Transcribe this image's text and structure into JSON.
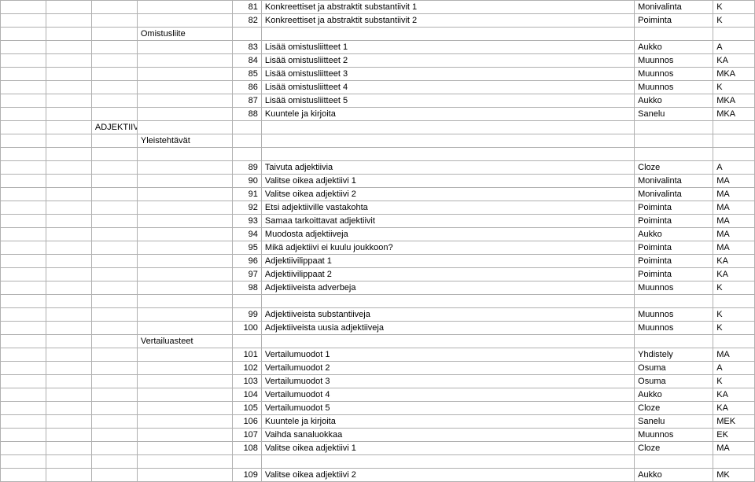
{
  "rows": [
    {
      "e": "81",
      "f": "Konkreettiset ja abstraktit substantiivit 1",
      "g": "Monivalinta",
      "h": "K"
    },
    {
      "e": "82",
      "f": "Konkreettiset ja abstraktit substantiivit 2",
      "g": "Poiminta",
      "h": "K"
    },
    {
      "d": "Omistusliite"
    },
    {
      "e": "83",
      "f": "Lisää omistusliitteet 1",
      "g": "Aukko",
      "h": "A"
    },
    {
      "e": "84",
      "f": "Lisää omistusliitteet 2",
      "g": "Muunnos",
      "h": "KA"
    },
    {
      "e": "85",
      "f": "Lisää omistusliitteet 3",
      "g": "Muunnos",
      "h": "MKA"
    },
    {
      "e": "86",
      "f": "Lisää omistusliitteet 4",
      "g": "Muunnos",
      "h": "K"
    },
    {
      "e": "87",
      "f": "Lisää omistusliitteet 5",
      "g": "Aukko",
      "h": "MKA"
    },
    {
      "e": "88",
      "f": "Kuuntele ja kirjoita",
      "g": "Sanelu",
      "h": "MKA"
    },
    {
      "c": "ADJEKTIIVIT"
    },
    {
      "d": "Yleistehtävät"
    },
    {
      "blank": true
    },
    {
      "e": "89",
      "f": "Taivuta adjektiivia",
      "g": "Cloze",
      "h": "A"
    },
    {
      "e": "90",
      "f": "Valitse oikea adjektiivi 1",
      "g": "Monivalinta",
      "h": "MA"
    },
    {
      "e": "91",
      "f": "Valitse oikea adjektiivi 2",
      "g": "Monivalinta",
      "h": "MA"
    },
    {
      "e": "92",
      "f": "Etsi adjektiiville vastakohta",
      "g": "Poiminta",
      "h": "MA"
    },
    {
      "e": "93",
      "f": "Samaa tarkoittavat adjektiivit",
      "g": "Poiminta",
      "h": "MA"
    },
    {
      "e": "94",
      "f": "Muodosta adjektiiveja",
      "g": "Aukko",
      "h": "MA"
    },
    {
      "e": "95",
      "f": "Mikä adjektiivi ei kuulu joukkoon?",
      "g": "Poiminta",
      "h": "MA"
    },
    {
      "e": "96",
      "f": "Adjektiivilippaat 1",
      "g": "Poiminta",
      "h": "KA"
    },
    {
      "e": "97",
      "f": "Adjektiivilippaat 2",
      "g": "Poiminta",
      "h": "KA"
    },
    {
      "e": "98",
      "f": "Adjektiiveista adverbeja",
      "g": "Muunnos",
      "h": "K"
    },
    {
      "blank": true
    },
    {
      "e": "99",
      "f": "Adjektiiveista substantiiveja",
      "g": "Muunnos",
      "h": "K"
    },
    {
      "e": "100",
      "f": "Adjektiiveista uusia adjektiiveja",
      "g": "Muunnos",
      "h": "K"
    },
    {
      "d": "Vertailuasteet"
    },
    {
      "e": "101",
      "f": "Vertailumuodot 1",
      "g": "Yhdistely",
      "h": "MA"
    },
    {
      "e": "102",
      "f": "Vertailumuodot 2",
      "g": "Osuma",
      "h": "A"
    },
    {
      "e": "103",
      "f": "Vertailumuodot 3",
      "g": "Osuma",
      "h": "K"
    },
    {
      "e": "104",
      "f": "Vertailumuodot 4",
      "g": "Aukko",
      "h": "KA"
    },
    {
      "e": "105",
      "f": "Vertailumuodot 5",
      "g": "Cloze",
      "h": "KA"
    },
    {
      "e": "106",
      "f": "Kuuntele ja kirjoita",
      "g": "Sanelu",
      "h": "MEK"
    },
    {
      "e": "107",
      "f": "Vaihda sanaluokkaa",
      "g": "Muunnos",
      "h": "EK"
    },
    {
      "e": "108",
      "f": "Valitse oikea adjektiivi 1",
      "g": "Cloze",
      "h": "MA"
    },
    {
      "blank": true
    },
    {
      "e": "109",
      "f": "Valitse oikea adjektiivi 2",
      "g": "Aukko",
      "h": "MK"
    }
  ]
}
